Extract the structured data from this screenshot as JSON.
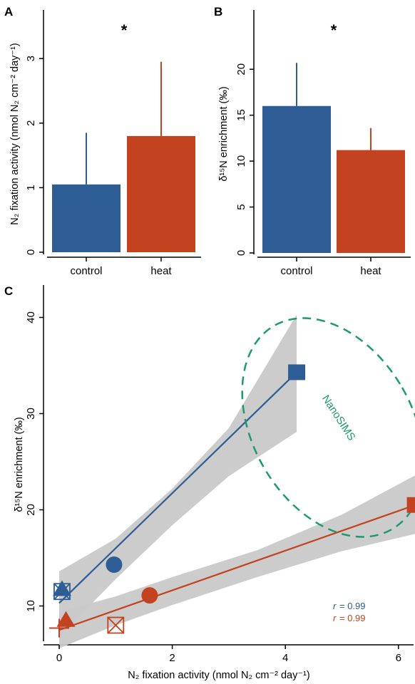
{
  "chart_data": [
    {
      "panel": "A",
      "type": "bar",
      "categories": [
        "control",
        "heat"
      ],
      "values": [
        1.05,
        1.8
      ],
      "error_upper": [
        1.85,
        2.95
      ],
      "ylabel": "N₂ fixation activity (nmol N₂ cm⁻² day⁻¹)",
      "ylim": [
        0,
        3.3
      ],
      "yticks": [
        0,
        1,
        2,
        3
      ],
      "annotation": "*",
      "colors": [
        "#2e5c95",
        "#c3421f"
      ]
    },
    {
      "panel": "B",
      "type": "bar",
      "categories": [
        "control",
        "heat"
      ],
      "values": [
        16.0,
        11.2
      ],
      "error_upper": [
        20.7,
        13.6
      ],
      "ylabel": "δ¹⁵N enrichment (‰)",
      "ylim": [
        0,
        22.5
      ],
      "yticks": [
        0,
        5,
        10,
        15,
        20
      ],
      "annotation": "*",
      "colors": [
        "#2e5c95",
        "#c3421f"
      ]
    },
    {
      "panel": "C",
      "type": "scatter",
      "xlabel": "N₂ fixation activity (nmol N₂ cm⁻² day⁻¹)",
      "ylabel": "δ¹⁵N enrichment (‰)",
      "xlim": [
        -0.3,
        6.5
      ],
      "ylim": [
        5,
        42
      ],
      "xticks": [
        0,
        2,
        4,
        6
      ],
      "yticks": [
        10,
        20,
        30,
        40
      ],
      "series": [
        {
          "color": "#2e5c95",
          "points": [
            {
              "x": 0.0,
              "y": 7.7,
              "shape": "plus"
            },
            {
              "x": 0.05,
              "y": 11.5,
              "shape": "boxx"
            },
            {
              "x": 0.05,
              "y": 11.7,
              "shape": "triangle"
            },
            {
              "x": 0.97,
              "y": 14.3,
              "shape": "circle"
            },
            {
              "x": 4.2,
              "y": 34.3,
              "shape": "square"
            }
          ],
          "fit": {
            "x0": 0.0,
            "y0": 10.3,
            "x1": 4.2,
            "y1": 34.3
          },
          "band": {
            "xs": [
              0.0,
              1.0,
              2.0,
              3.0,
              4.2
            ],
            "lower": [
              6.8,
              12.8,
              18.4,
              23.5,
              28.1
            ],
            "upper": [
              13.6,
              17.0,
              22.2,
              28.5,
              40.3
            ]
          },
          "r_label": "r",
          "r_value": "= 0.99"
        },
        {
          "color": "#c3421f",
          "points": [
            {
              "x": 0.0,
              "y": 7.7,
              "shape": "plus"
            },
            {
              "x": 0.12,
              "y": 8.5,
              "shape": "triangle"
            },
            {
              "x": 1.0,
              "y": 8.0,
              "shape": "boxx"
            },
            {
              "x": 1.6,
              "y": 11.1,
              "shape": "circle"
            },
            {
              "x": 6.3,
              "y": 20.5,
              "shape": "square"
            }
          ],
          "fit": {
            "x0": 0.0,
            "y0": 7.5,
            "x1": 6.3,
            "y1": 20.5
          },
          "band": {
            "xs": [
              0.0,
              1.0,
              2.0,
              3.5,
              5.0,
              6.3
            ],
            "lower": [
              5.6,
              8.0,
              10.1,
              13.0,
              15.7,
              17.5
            ],
            "upper": [
              9.4,
              11.0,
              13.0,
              15.8,
              19.5,
              23.6
            ]
          },
          "r_label": "r",
          "r_value": "= 0.99"
        }
      ],
      "annotation_text": "NanoSIMS",
      "annotation_color": "#1d9a6c"
    }
  ]
}
